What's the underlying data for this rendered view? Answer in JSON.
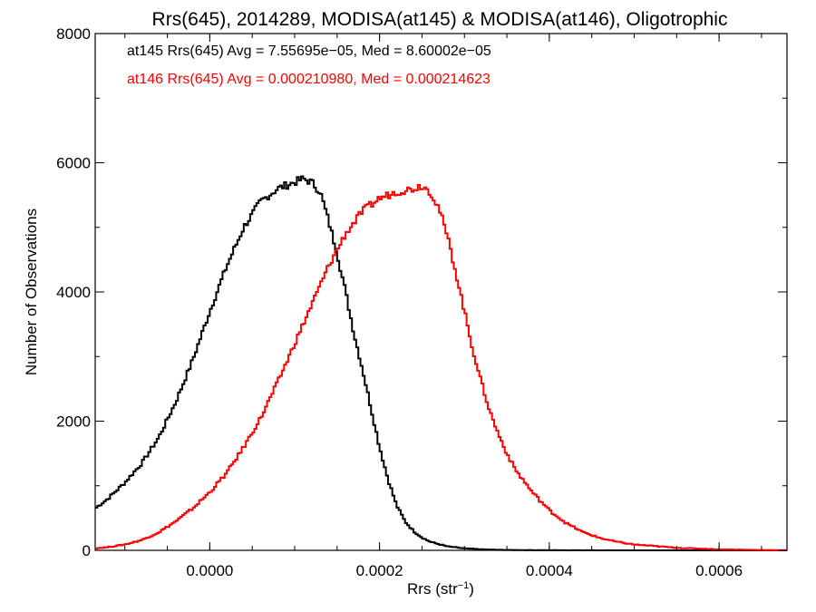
{
  "chart_data": {
    "type": "line",
    "title": "Rrs(645), 2014289, MODISA(at145) & MODISA(at146), Oligotrophic",
    "xlabel": "Rrs (str",
    "xlabel_sup": "−1",
    "xlabel_close": ")",
    "ylabel": "Number of Observations",
    "xlim": [
      -0.000135,
      0.00068
    ],
    "ylim": [
      0,
      8000
    ],
    "x_ticks": [
      0.0,
      0.0002,
      0.0004,
      0.0006
    ],
    "x_tick_labels": [
      "0.0000",
      "0.0002",
      "0.0004",
      "0.0006"
    ],
    "y_ticks": [
      0,
      2000,
      4000,
      6000,
      8000
    ],
    "y_tick_labels": [
      "0",
      "2000",
      "4000",
      "6000",
      "8000"
    ],
    "grid": false,
    "annotations": [
      {
        "text": "at145 Rrs(645) Avg = 7.55695e−05, Med = 8.60002e−05",
        "color": "#000000"
      },
      {
        "text": "at146 Rrs(645) Avg = 0.000210980, Med = 0.000214623",
        "color": "#ff0000"
      }
    ],
    "series": [
      {
        "color": "#000000",
        "x": [
          -0.000135,
          -0.00012,
          -0.0001,
          -8e-05,
          -6e-05,
          -4e-05,
          -2e-05,
          0.0,
          2e-05,
          4e-05,
          6e-05,
          8e-05,
          0.0001,
          0.00011,
          0.00012,
          0.00013,
          0.00014,
          0.00015,
          0.00016,
          0.00017,
          0.00018,
          0.00019,
          0.0002,
          0.00021,
          0.00022,
          0.00023,
          0.00024,
          0.00025,
          0.00026,
          0.00028,
          0.0003,
          0.00032,
          0.00034,
          0.00036,
          0.0004,
          0.00045,
          0.0005,
          0.0006,
          0.00068
        ],
        "values": [
          650,
          800,
          1050,
          1350,
          1750,
          2300,
          2950,
          3700,
          4400,
          5000,
          5400,
          5600,
          5700,
          5750,
          5700,
          5550,
          5100,
          4600,
          4000,
          3350,
          2800,
          2200,
          1600,
          1100,
          700,
          450,
          300,
          200,
          130,
          60,
          30,
          15,
          8,
          4,
          2,
          1,
          0,
          0,
          0
        ]
      },
      {
        "color": "#ff0000",
        "x": [
          -0.000135,
          -0.00012,
          -0.0001,
          -8e-05,
          -6e-05,
          -4e-05,
          -2e-05,
          0.0,
          2e-05,
          4e-05,
          6e-05,
          8e-05,
          0.0001,
          0.00012,
          0.00014,
          0.00016,
          0.00018,
          0.0002,
          0.00022,
          0.00024,
          0.00025,
          0.00026,
          0.00027,
          0.00028,
          0.00029,
          0.0003,
          0.00031,
          0.00032,
          0.00033,
          0.00034,
          0.00035,
          0.00036,
          0.00038,
          0.0004,
          0.00042,
          0.00044,
          0.00046,
          0.00048,
          0.0005,
          0.00055,
          0.0006,
          0.00065,
          0.00068
        ],
        "values": [
          30,
          50,
          90,
          160,
          280,
          450,
          650,
          900,
          1200,
          1600,
          2050,
          2600,
          3200,
          3800,
          4400,
          4900,
          5250,
          5450,
          5550,
          5600,
          5650,
          5550,
          5300,
          4850,
          4300,
          3700,
          3100,
          2600,
          2150,
          1800,
          1500,
          1250,
          900,
          620,
          420,
          280,
          190,
          130,
          90,
          40,
          15,
          5,
          2
        ]
      }
    ]
  }
}
